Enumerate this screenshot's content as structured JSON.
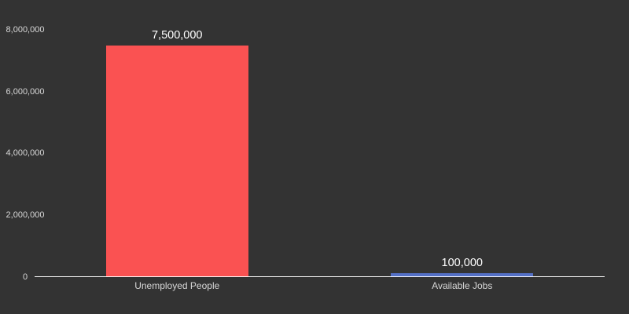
{
  "chart_data": {
    "type": "bar",
    "categories": [
      "Unemployed People",
      "Available Jobs"
    ],
    "values": [
      7500000,
      100000
    ],
    "value_labels": [
      "7,500,000",
      "100,000"
    ],
    "y_ticks": [
      0,
      2000000,
      4000000,
      6000000,
      8000000
    ],
    "y_tick_labels": [
      "0",
      "2,000,000",
      "4,000,000",
      "6,000,000",
      "8,000,000"
    ],
    "ylim": [
      0,
      8000000
    ],
    "xlabel": "",
    "ylabel": "",
    "grid": false,
    "legend": false,
    "bar_colors": [
      "#fa5252",
      "#5470c6"
    ],
    "colors": {
      "background": "#333333",
      "axis_line": "#ffffff",
      "tick_label": "#d7d7d7",
      "category_label": "#d7d7d7",
      "value_label": "#ffffff"
    }
  }
}
